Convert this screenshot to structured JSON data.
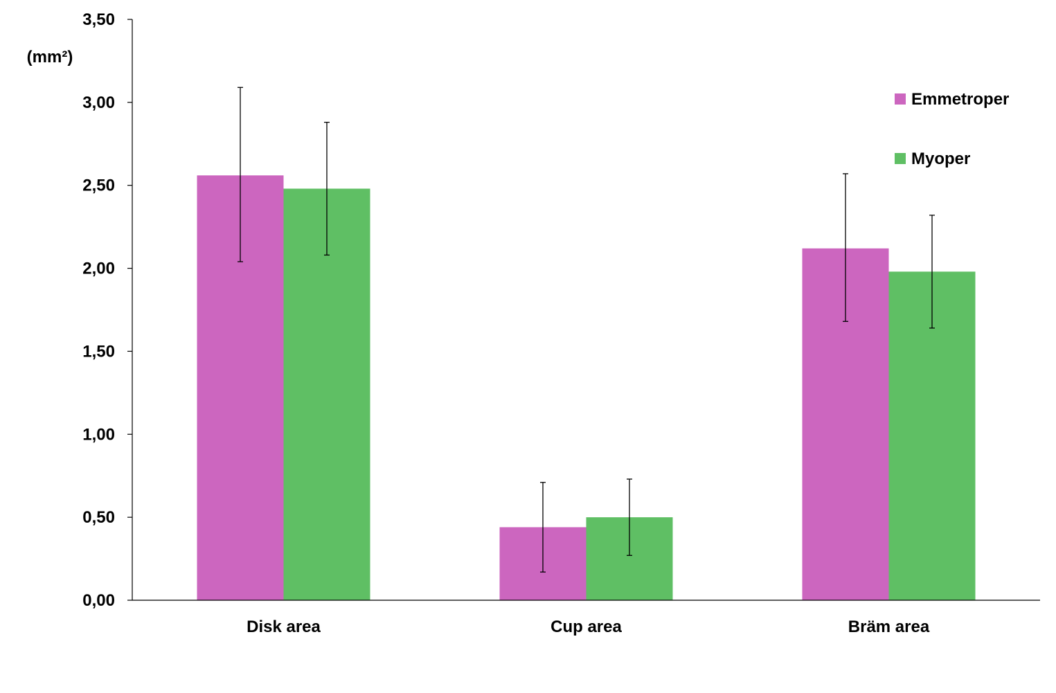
{
  "chart_data": {
    "type": "bar",
    "title": "",
    "xlabel": "",
    "ylabel": "(mm²)",
    "categories": [
      "Disk area",
      "Cup area",
      "Bräm area"
    ],
    "series": [
      {
        "name": "Emmetroper",
        "color": "#cc66bf",
        "values": [
          2.56,
          0.44,
          2.12
        ],
        "error_high": [
          3.09,
          0.71,
          2.57
        ],
        "error_low": [
          2.04,
          0.17,
          1.68
        ]
      },
      {
        "name": "Myoper",
        "color": "#5fbf64",
        "values": [
          2.48,
          0.5,
          1.98
        ],
        "error_high": [
          2.88,
          0.73,
          2.32
        ],
        "error_low": [
          2.08,
          0.27,
          1.64
        ]
      }
    ],
    "ylim": [
      0,
      3.5
    ],
    "yticks": [
      0,
      0.5,
      1,
      1.5,
      2,
      2.5,
      3,
      3.5
    ],
    "ytick_labels": [
      "0,00",
      "0,50",
      "1,00",
      "1,50",
      "2,00",
      "2,50",
      "3,00",
      "3,50"
    ],
    "grid": false,
    "legend_position": "top-right"
  }
}
